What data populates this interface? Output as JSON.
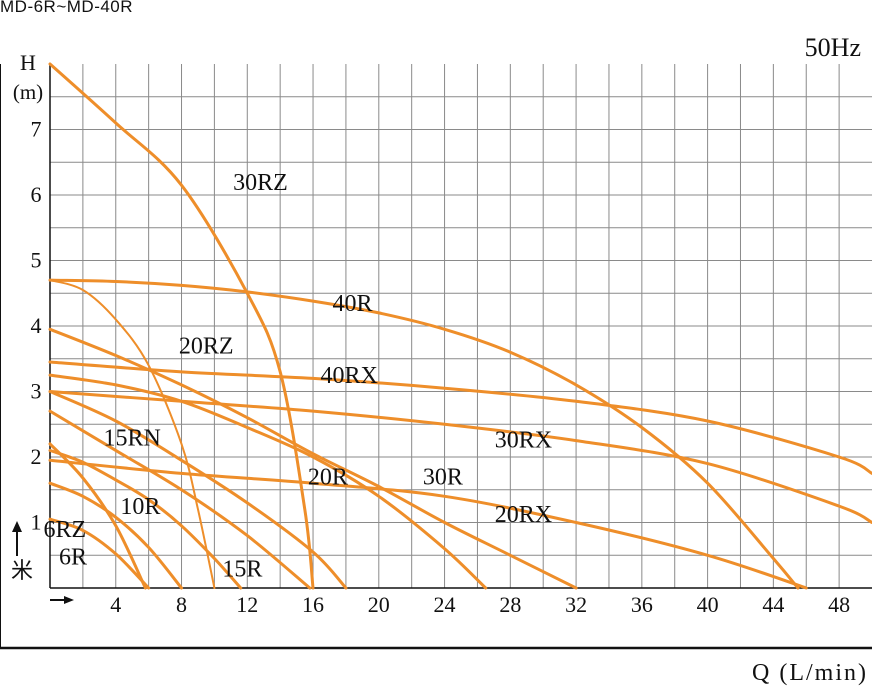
{
  "header": {
    "title": "MD-6R~MD-40R"
  },
  "chart_data": {
    "type": "line",
    "title": "MD-6R~MD-40R",
    "subtitle": "50Hz",
    "ylabel_top": "H",
    "ylabel_unit": "(m)",
    "xlabel": "Q (L/min)",
    "y_side_label": "米",
    "xlim": [
      0,
      50
    ],
    "ylim": [
      0,
      8
    ],
    "x_ticks": [
      4,
      8,
      12,
      16,
      20,
      24,
      28,
      32,
      36,
      40,
      44,
      48
    ],
    "y_ticks": [
      1,
      2,
      3,
      4,
      5,
      6,
      7
    ],
    "grid": true,
    "curve_color": "#ee8e2a",
    "series": [
      {
        "name": "6R",
        "x": [
          0,
          2,
          4,
          6
        ],
        "y": [
          1.05,
          0.88,
          0.52,
          0
        ]
      },
      {
        "name": "6RZ",
        "x": [
          0,
          2,
          4,
          5.8
        ],
        "y": [
          2.2,
          1.68,
          0.95,
          0
        ]
      },
      {
        "name": "10R",
        "x": [
          0,
          2,
          4,
          6,
          8
        ],
        "y": [
          1.6,
          1.4,
          1.08,
          0.62,
          0
        ]
      },
      {
        "name": "15R",
        "x": [
          0,
          2,
          4,
          6,
          8,
          10,
          11.6
        ],
        "y": [
          2.1,
          1.92,
          1.65,
          1.35,
          0.95,
          0.45,
          0
        ]
      },
      {
        "name": "15RN",
        "x": [
          0,
          4,
          8,
          12,
          15.8
        ],
        "y": [
          2.7,
          2.1,
          1.5,
          0.8,
          0
        ]
      },
      {
        "name": "20R",
        "x": [
          0,
          4,
          8,
          12,
          16,
          18
        ],
        "y": [
          3.0,
          2.55,
          1.95,
          1.3,
          0.55,
          0
        ]
      },
      {
        "name": "20RZ",
        "x": [
          0,
          2,
          4,
          6,
          8,
          9,
          10
        ],
        "y": [
          4.7,
          4.55,
          4.1,
          3.4,
          2.2,
          1.2,
          0
        ]
      },
      {
        "name": "30R",
        "x": [
          0,
          4,
          8,
          12,
          16,
          20,
          24,
          26.5
        ],
        "y": [
          3.25,
          3.1,
          2.85,
          2.45,
          2.0,
          1.4,
          0.6,
          0
        ]
      },
      {
        "name": "30RZ",
        "x": [
          0,
          4,
          8,
          12,
          14,
          15.5,
          16
        ],
        "y": [
          8.0,
          7.1,
          6.15,
          4.5,
          3.3,
          1.2,
          0
        ]
      },
      {
        "name": "40R",
        "x": [
          0,
          4,
          8,
          12,
          16,
          20,
          24,
          28,
          32,
          36,
          40,
          44,
          45.5
        ],
        "y": [
          4.7,
          4.68,
          4.62,
          4.52,
          4.38,
          4.2,
          3.95,
          3.6,
          3.1,
          2.45,
          1.6,
          0.45,
          0
        ]
      },
      {
        "name": "30RX",
        "x": [
          0,
          8,
          16,
          24,
          32,
          40,
          48,
          50
        ],
        "y": [
          3.45,
          3.3,
          3.2,
          3.05,
          2.85,
          2.55,
          2.0,
          1.75
        ]
      },
      {
        "name": "20RX",
        "x": [
          0,
          8,
          16,
          24,
          32,
          40,
          46
        ],
        "y": [
          1.95,
          1.75,
          1.6,
          1.4,
          1.0,
          0.5,
          0
        ]
      },
      {
        "name": "40RX",
        "x": [
          0,
          8,
          16,
          24,
          32,
          40,
          48,
          50
        ],
        "y": [
          3.0,
          2.85,
          2.7,
          2.5,
          2.25,
          1.9,
          1.25,
          1.0
        ]
      },
      {
        "name": "",
        "x": [
          0,
          4,
          8,
          12,
          16,
          20,
          24,
          28,
          32
        ],
        "y": [
          3.95,
          3.55,
          3.1,
          2.6,
          2.05,
          1.55,
          1.0,
          0.5,
          0
        ]
      }
    ],
    "labels": [
      {
        "text": "30RZ",
        "x": 12.8,
        "y": 6.2
      },
      {
        "text": "40R",
        "x": 18.4,
        "y": 4.35
      },
      {
        "text": "20RZ",
        "x": 9.5,
        "y": 3.7
      },
      {
        "text": "40RX",
        "x": 18.2,
        "y": 3.25
      },
      {
        "text": "15RN",
        "x": 5.0,
        "y": 2.3
      },
      {
        "text": "30RX",
        "x": 28.8,
        "y": 2.27
      },
      {
        "text": "20R",
        "x": 16.9,
        "y": 1.7
      },
      {
        "text": "30R",
        "x": 23.9,
        "y": 1.7
      },
      {
        "text": "20RX",
        "x": 28.8,
        "y": 1.13
      },
      {
        "text": "10R",
        "x": 5.5,
        "y": 1.25
      },
      {
        "text": "6RZ",
        "x": 0.9,
        "y": 0.9
      },
      {
        "text": "6R",
        "x": 1.4,
        "y": 0.48
      },
      {
        "text": "15R",
        "x": 11.7,
        "y": 0.3
      }
    ]
  }
}
